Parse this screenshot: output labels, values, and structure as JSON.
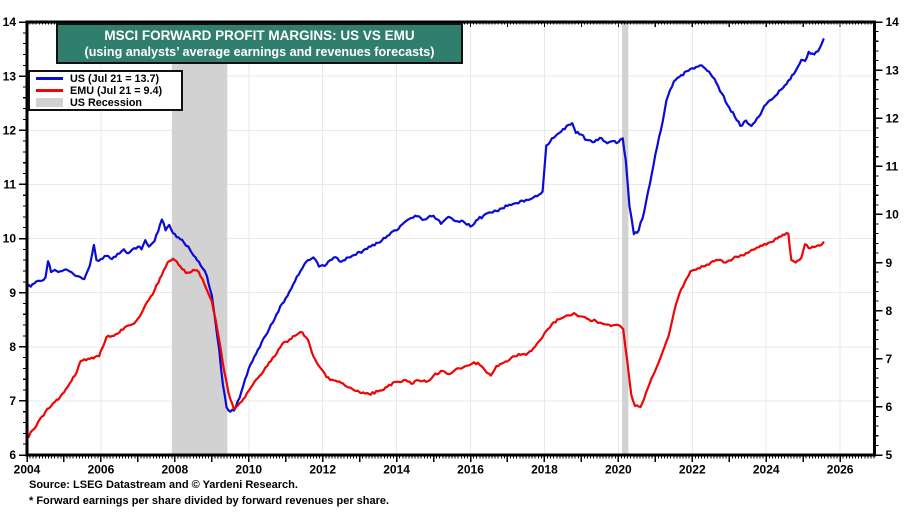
{
  "title": {
    "line1": "MSCI FORWARD PROFIT MARGINS: US VS EMU",
    "line2": "(using analysts’ average earnings and revenues forecasts)"
  },
  "legend": {
    "items": [
      {
        "label": "US (Jul 21 = 13.7)",
        "type": "line",
        "color": "#0b0bd6"
      },
      {
        "label": "EMU (Jul 21 = 9.4)",
        "type": "line",
        "color": "#ee0505"
      },
      {
        "label": "US Recession",
        "type": "band",
        "color": "#d2d2d2"
      }
    ]
  },
  "footer": {
    "source": "Source: LSEG Datastream and © Yardeni Research.",
    "note": "* Forward earnings per share divided by forward revenues per share."
  },
  "colors": {
    "title_background": "#2f7e6e",
    "us_line": "#0b0bd6",
    "emu_line": "#ee0505",
    "recession_band": "#d2d2d2",
    "gridline": "#e9e9e9",
    "axis": "#000000"
  },
  "chart_data": {
    "type": "line",
    "title": "MSCI FORWARD PROFIT MARGINS: US VS EMU",
    "subtitle": "(using analysts’ average earnings and revenues forecasts)",
    "grid": true,
    "legend_position": "top-left",
    "x_axis": {
      "range": [
        2004,
        2026.93
      ],
      "labeled_ticks": [
        2004,
        2006,
        2008,
        2010,
        2012,
        2014,
        2016,
        2018,
        2020,
        2022,
        2024,
        2026
      ],
      "year_tick_step": 1,
      "minor_tick": "monthly"
    },
    "left_axis": {
      "range": [
        6,
        14
      ],
      "ticks": [
        6,
        7,
        8,
        9,
        10,
        11,
        12,
        13,
        14
      ],
      "minor_step": 0.2
    },
    "right_axis": {
      "range": [
        5,
        14
      ],
      "ticks": [
        5,
        6,
        7,
        8,
        9,
        10,
        11,
        12,
        13,
        14
      ],
      "minor_step": 0.2
    },
    "recessions": [
      [
        2007.92,
        2009.42
      ],
      [
        2020.1,
        2020.27
      ]
    ],
    "series": [
      {
        "name": "US (Jul 21 = 13.7)",
        "axis": "left",
        "color": "#0b0bd6",
        "x": [
          2004.0,
          2004.2,
          2004.4,
          2004.5,
          2004.57,
          2004.65,
          2004.8,
          2005.0,
          2005.2,
          2005.4,
          2005.55,
          2005.7,
          2005.81,
          2005.88,
          2006.0,
          2006.15,
          2006.3,
          2006.5,
          2006.62,
          2006.75,
          2006.9,
          2007.0,
          2007.1,
          2007.2,
          2007.3,
          2007.45,
          2007.65,
          2007.75,
          2007.85,
          2007.95,
          2008.1,
          2008.25,
          2008.42,
          2008.6,
          2008.75,
          2008.87,
          2009.0,
          2009.1,
          2009.2,
          2009.3,
          2009.4,
          2009.5,
          2009.6,
          2009.75,
          2009.9,
          2010.0,
          2010.25,
          2010.5,
          2010.75,
          2011.0,
          2011.2,
          2011.4,
          2011.6,
          2011.75,
          2011.9,
          2012.1,
          2012.3,
          2012.5,
          2012.7,
          2012.9,
          2013.1,
          2013.3,
          2013.5,
          2013.75,
          2014.0,
          2014.25,
          2014.5,
          2014.75,
          2015.0,
          2015.2,
          2015.4,
          2015.6,
          2015.8,
          2016.0,
          2016.2,
          2016.4,
          2016.6,
          2016.8,
          2017.0,
          2017.2,
          2017.4,
          2017.6,
          2017.8,
          2017.95,
          2018.05,
          2018.2,
          2018.4,
          2018.6,
          2018.75,
          2018.85,
          2019.0,
          2019.15,
          2019.3,
          2019.5,
          2019.7,
          2019.85,
          2020.0,
          2020.12,
          2020.2,
          2020.3,
          2020.42,
          2020.55,
          2020.7,
          2020.85,
          2021.0,
          2021.15,
          2021.3,
          2021.5,
          2021.7,
          2021.9,
          2022.1,
          2022.25,
          2022.4,
          2022.6,
          2022.8,
          2023.0,
          2023.15,
          2023.3,
          2023.45,
          2023.6,
          2023.8,
          2024.0,
          2024.2,
          2024.4,
          2024.6,
          2024.8,
          2024.95,
          2025.05,
          2025.15,
          2025.3,
          2025.45,
          2025.55
        ],
        "values": [
          9.1,
          9.17,
          9.22,
          9.28,
          9.58,
          9.38,
          9.4,
          9.42,
          9.38,
          9.3,
          9.25,
          9.5,
          9.88,
          9.6,
          9.62,
          9.68,
          9.62,
          9.72,
          9.8,
          9.73,
          9.82,
          9.85,
          9.8,
          9.97,
          9.85,
          9.95,
          10.35,
          10.15,
          10.25,
          10.1,
          10.02,
          9.92,
          9.78,
          9.6,
          9.45,
          9.3,
          8.95,
          8.45,
          7.95,
          7.3,
          6.88,
          6.8,
          6.82,
          7.05,
          7.4,
          7.6,
          7.95,
          8.25,
          8.6,
          8.9,
          9.15,
          9.4,
          9.6,
          9.65,
          9.48,
          9.52,
          9.65,
          9.57,
          9.65,
          9.7,
          9.78,
          9.85,
          9.92,
          10.05,
          10.15,
          10.32,
          10.42,
          10.35,
          10.42,
          10.27,
          10.4,
          10.32,
          10.32,
          10.22,
          10.35,
          10.45,
          10.48,
          10.55,
          10.6,
          10.65,
          10.7,
          10.72,
          10.78,
          10.87,
          11.72,
          11.85,
          11.95,
          12.08,
          12.13,
          11.95,
          11.92,
          11.82,
          11.78,
          11.86,
          11.76,
          11.8,
          11.78,
          11.85,
          11.45,
          10.6,
          10.08,
          10.15,
          10.5,
          11.0,
          11.55,
          12.0,
          12.55,
          12.9,
          13.02,
          13.1,
          13.17,
          13.2,
          13.1,
          12.95,
          12.68,
          12.42,
          12.25,
          12.08,
          12.18,
          12.08,
          12.25,
          12.48,
          12.6,
          12.75,
          12.92,
          13.1,
          13.3,
          13.28,
          13.45,
          13.4,
          13.52,
          13.68
        ]
      },
      {
        "name": "EMU (Jul 21 = 9.4)",
        "axis": "right",
        "color": "#ee0505",
        "x": [
          2004.0,
          2004.25,
          2004.5,
          2004.75,
          2005.0,
          2005.3,
          2005.45,
          2005.7,
          2005.95,
          2006.15,
          2006.45,
          2006.7,
          2006.95,
          2007.1,
          2007.25,
          2007.45,
          2007.6,
          2007.8,
          2007.95,
          2008.15,
          2008.3,
          2008.5,
          2008.65,
          2008.8,
          2009.0,
          2009.15,
          2009.3,
          2009.45,
          2009.6,
          2009.75,
          2009.9,
          2010.1,
          2010.3,
          2010.5,
          2010.7,
          2010.9,
          2011.1,
          2011.3,
          2011.45,
          2011.6,
          2011.75,
          2011.9,
          2012.1,
          2012.3,
          2012.5,
          2012.75,
          2013.0,
          2013.25,
          2013.5,
          2013.75,
          2014.0,
          2014.2,
          2014.4,
          2014.6,
          2014.8,
          2015.0,
          2015.2,
          2015.4,
          2015.6,
          2015.8,
          2016.0,
          2016.2,
          2016.4,
          2016.55,
          2016.7,
          2016.9,
          2017.1,
          2017.3,
          2017.5,
          2017.7,
          2017.9,
          2018.05,
          2018.2,
          2018.4,
          2018.6,
          2018.8,
          2019.0,
          2019.2,
          2019.4,
          2019.6,
          2019.8,
          2020.0,
          2020.13,
          2020.25,
          2020.35,
          2020.45,
          2020.6,
          2020.75,
          2020.9,
          2021.05,
          2021.2,
          2021.35,
          2021.5,
          2021.65,
          2021.8,
          2021.95,
          2022.1,
          2022.3,
          2022.5,
          2022.7,
          2022.9,
          2023.1,
          2023.3,
          2023.5,
          2023.7,
          2023.9,
          2024.1,
          2024.3,
          2024.45,
          2024.6,
          2024.68,
          2024.8,
          2024.95,
          2025.05,
          2025.15,
          2025.3,
          2025.45,
          2025.55
        ],
        "values": [
          5.35,
          5.6,
          5.9,
          6.1,
          6.3,
          6.65,
          6.95,
          7.0,
          7.05,
          7.45,
          7.52,
          7.68,
          7.78,
          7.95,
          8.18,
          8.42,
          8.68,
          9.0,
          9.08,
          8.92,
          8.78,
          8.85,
          8.8,
          8.55,
          8.2,
          7.6,
          6.9,
          6.3,
          5.95,
          6.08,
          6.2,
          6.45,
          6.65,
          6.85,
          7.05,
          7.3,
          7.4,
          7.5,
          7.55,
          7.4,
          7.05,
          6.85,
          6.62,
          6.55,
          6.5,
          6.4,
          6.3,
          6.27,
          6.32,
          6.42,
          6.52,
          6.56,
          6.48,
          6.55,
          6.52,
          6.65,
          6.75,
          6.68,
          6.78,
          6.82,
          6.88,
          6.92,
          6.75,
          6.65,
          6.85,
          6.92,
          7.02,
          7.1,
          7.08,
          7.22,
          7.4,
          7.58,
          7.72,
          7.82,
          7.9,
          7.95,
          7.88,
          7.82,
          7.78,
          7.72,
          7.68,
          7.7,
          7.62,
          6.9,
          6.25,
          6.02,
          6.0,
          6.3,
          6.6,
          6.85,
          7.15,
          7.45,
          7.95,
          8.35,
          8.6,
          8.82,
          8.85,
          8.92,
          9.0,
          9.05,
          9.0,
          9.08,
          9.15,
          9.2,
          9.28,
          9.35,
          9.42,
          9.5,
          9.58,
          9.6,
          9.05,
          9.0,
          9.1,
          9.38,
          9.3,
          9.32,
          9.35,
          9.42
        ]
      }
    ]
  }
}
